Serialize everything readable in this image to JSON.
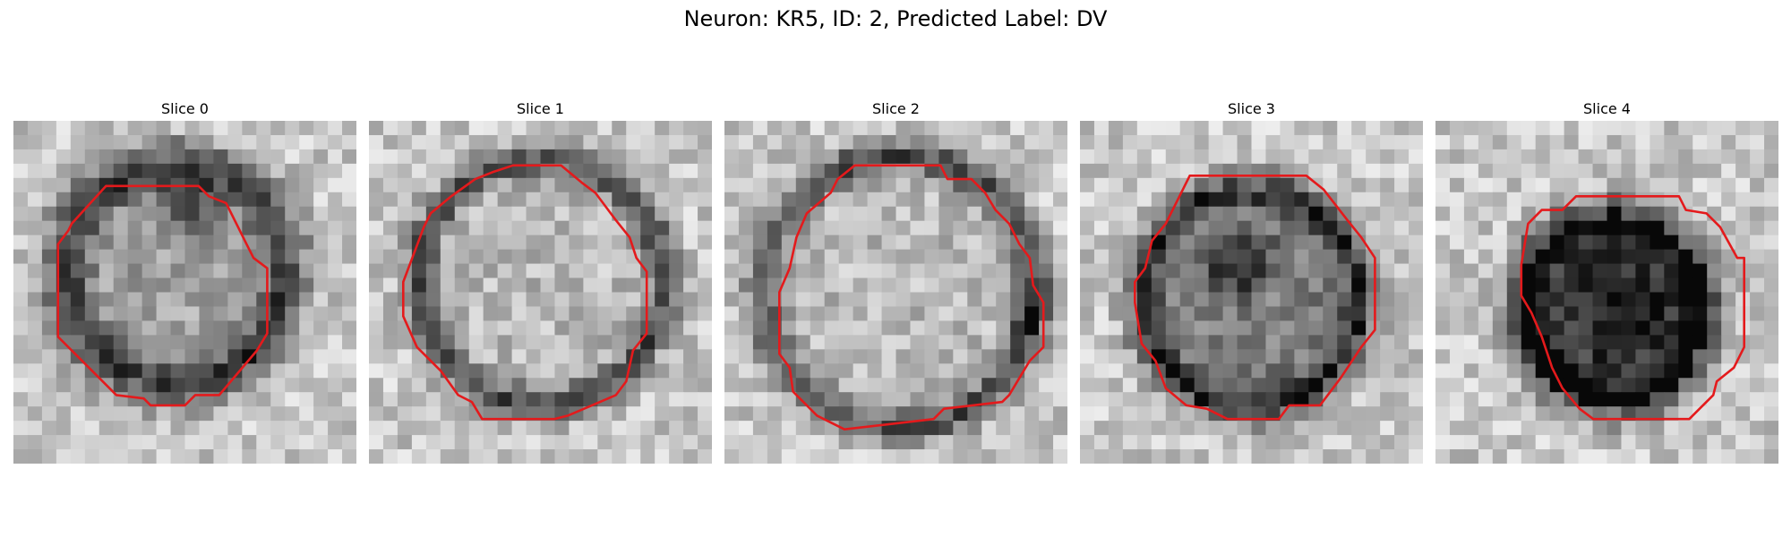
{
  "figure": {
    "title": "Neuron: KR5, ID: 2, Predicted Label: DV"
  },
  "panels": [
    {
      "title": "Slice 0"
    },
    {
      "title": "Slice 1"
    },
    {
      "title": "Slice 2"
    },
    {
      "title": "Slice 3"
    },
    {
      "title": "Slice 4"
    }
  ],
  "colors": {
    "contour": "#e41a1c",
    "background": "#ffffff"
  }
}
